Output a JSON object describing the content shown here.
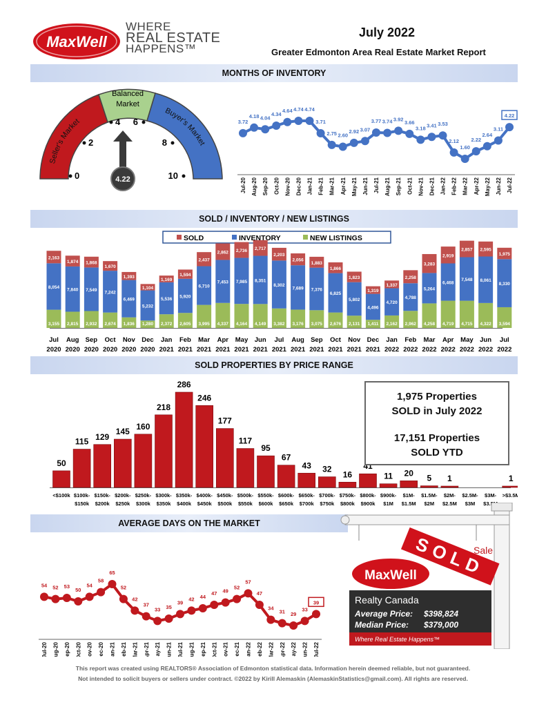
{
  "header": {
    "logo_text": "MaxWell",
    "tagline_lines": [
      "WHERE",
      "REAL ESTATE",
      "HAPPENS™"
    ],
    "report_month": "July 2022",
    "report_title": "Greater Edmonton Area Real Estate Market Report"
  },
  "sections": {
    "inventory": "MONTHS OF INVENTORY",
    "sold_inv": "SOLD / INVENTORY / NEW LISTINGS",
    "price_range": "SOLD PROPERTIES BY PRICE RANGE",
    "dom": "AVERAGE DAYS ON THE MARKET"
  },
  "gauge": {
    "sellers_label": "Seller's Market",
    "balanced_label": "Balanced Market",
    "buyers_label": "Buyer's Market",
    "ticks": [
      "0",
      "2",
      "4",
      "6",
      "8",
      "10"
    ],
    "value": 4.22,
    "value_label": "4.22",
    "colors": {
      "sellers": "#c0191e",
      "balanced": "#a9d18e",
      "buyers": "#4472c4",
      "needle": "#3a3a3a"
    }
  },
  "summary": {
    "sold_count": "1,975 Properties",
    "sold_caption": "SOLD in July 2022",
    "ytd_count": "17,151 Properties",
    "ytd_caption": "SOLD YTD"
  },
  "sign": {
    "sold_text": "SOLD",
    "sale_text": "Sale",
    "brand": "MaxWell",
    "company": "Realty Canada",
    "avg_label": "Average Price:",
    "avg_value": "$398,824",
    "median_label": "Median Price:",
    "median_value": "$379,000",
    "slogan": "Where Real Estate Happens™"
  },
  "footer": {
    "line1": "This report was created using REALTORS® Association of Edmonton statistical data. Information herein deemed reliable, but not guaranteed.",
    "line2": "Not intended to solicit buyers or sellers under contract. ©2022 by Kirill Alemaskin (AlemaskinStatistics@gmail.com). All rights are reserved."
  },
  "chart_data": [
    {
      "type": "line",
      "name": "months_of_inventory",
      "x": [
        "Jul-20",
        "Aug-20",
        "Sep-20",
        "Oct-20",
        "Nov-20",
        "Dec-20",
        "Jan-21",
        "Feb-21",
        "Mar-21",
        "Apr-21",
        "May-21",
        "Jun-21",
        "Jul-21",
        "Aug-21",
        "Sep-21",
        "Oct-21",
        "Nov-21",
        "Dec-21",
        "Jan-22",
        "Feb-22",
        "Mar-22",
        "Apr-22",
        "May-22",
        "Jun-22",
        "Jul-22"
      ],
      "values": [
        3.72,
        4.18,
        4.04,
        4.34,
        4.64,
        4.74,
        4.74,
        3.71,
        2.75,
        2.6,
        2.92,
        3.07,
        3.77,
        3.74,
        3.92,
        3.66,
        3.18,
        3.41,
        3.53,
        2.12,
        1.6,
        2.22,
        2.64,
        3.11,
        4.22
      ],
      "labels": [
        "3.72",
        "4.18",
        "4.04",
        "4.34",
        "4.64",
        "4.74",
        "4.74",
        "3.71",
        "2.75",
        "2.60",
        "2.92",
        "3.07",
        "3.77",
        "3.74",
        "3.92",
        "3.66",
        "3.18",
        "3.41",
        "3.53",
        "2.12",
        "1.60",
        "2.22",
        "2.64",
        "3.11",
        "4.22"
      ],
      "color": "#4472c4",
      "highlight_last": true
    },
    {
      "type": "bar",
      "name": "sold_inventory_new_listings",
      "stacked": true,
      "legend": [
        "SOLD",
        "INVENTORY",
        "NEW LISTINGS"
      ],
      "categories": [
        [
          "Jul",
          "2020"
        ],
        [
          "Aug",
          "2020"
        ],
        [
          "Sep",
          "2020"
        ],
        [
          "Oct",
          "2020"
        ],
        [
          "Nov",
          "2020"
        ],
        [
          "Dec",
          "2020"
        ],
        [
          "Jan",
          "2021"
        ],
        [
          "Feb",
          "2021"
        ],
        [
          "Mar",
          "2021"
        ],
        [
          "Apr",
          "2021"
        ],
        [
          "May",
          "2021"
        ],
        [
          "Jun",
          "2021"
        ],
        [
          "Jul",
          "2021"
        ],
        [
          "Aug",
          "2021"
        ],
        [
          "Sep",
          "2021"
        ],
        [
          "Oct",
          "2021"
        ],
        [
          "Nov",
          "2021"
        ],
        [
          "Dec",
          "2021"
        ],
        [
          "Jan",
          "2022"
        ],
        [
          "Feb",
          "2022"
        ],
        [
          "Mar",
          "2022"
        ],
        [
          "Apr",
          "2022"
        ],
        [
          "May",
          "2022"
        ],
        [
          "Jun",
          "2022"
        ],
        [
          "Jul",
          "2022"
        ]
      ],
      "series": [
        {
          "name": "NEW LISTINGS",
          "color": "#9bbb59",
          "values": [
            3155,
            2815,
            2932,
            2674,
            1836,
            1280,
            2372,
            2605,
            3995,
            4337,
            4164,
            4149,
            3382,
            3176,
            3075,
            2676,
            2131,
            1411,
            2162,
            2962,
            4258,
            4719,
            4715,
            4322,
            3594
          ],
          "labels": [
            "3,155",
            "2,815",
            "2,932",
            "2,674",
            "1,836",
            "1,280",
            "2,372",
            "2,605",
            "3,995",
            "4,337",
            "4,164",
            "4,149",
            "3,382",
            "3,176",
            "3,075",
            "2,676",
            "2,131",
            "1,411",
            "2,162",
            "2,962",
            "4,258",
            "4,719",
            "4,715",
            "4,322",
            "3,594"
          ]
        },
        {
          "name": "INVENTORY",
          "color": "#4472c4",
          "values": [
            8054,
            7840,
            7549,
            7242,
            6469,
            5232,
            5536,
            5920,
            6710,
            7453,
            7985,
            8351,
            8302,
            7689,
            7376,
            6825,
            5802,
            4496,
            4720,
            4788,
            5264,
            6468,
            7548,
            8061,
            8330
          ],
          "labels": [
            "8,054",
            "7,840",
            "7,549",
            "7,242",
            "6,469",
            "5,232",
            "5,536",
            "5,920",
            "6,710",
            "7,453",
            "7,985",
            "8,351",
            "8,302",
            "7,689",
            "7,376",
            "6,825",
            "5,802",
            "4,496",
            "4,720",
            "4,788",
            "5,264",
            "6,468",
            "7,548",
            "8,061",
            "8,330"
          ]
        },
        {
          "name": "SOLD",
          "color": "#c0504d",
          "values": [
            2163,
            1874,
            1868,
            1670,
            1393,
            1104,
            1169,
            1594,
            2437,
            2862,
            2736,
            2717,
            2203,
            2056,
            1883,
            1866,
            1823,
            1319,
            1337,
            2258,
            3283,
            2919,
            2857,
            2595,
            1975
          ],
          "labels": [
            "2,163",
            "1,874",
            "1,868",
            "1,670",
            "1,393",
            "1,104",
            "1,169",
            "1,594",
            "2,437",
            "2,862",
            "2,736",
            "2,717",
            "2,203",
            "2,056",
            "1,883",
            "1,866",
            "1,823",
            "1,319",
            "1,337",
            "2,258",
            "3,283",
            "2,919",
            "2,857",
            "2,595",
            "1,975"
          ]
        }
      ]
    },
    {
      "type": "bar",
      "name": "sold_by_price_range",
      "categories": [
        [
          "<$100k",
          ""
        ],
        [
          "$100k-",
          "$150k"
        ],
        [
          "$150k-",
          "$200k"
        ],
        [
          "$200k-",
          "$250k"
        ],
        [
          "$250k-",
          "$300k"
        ],
        [
          "$300k-",
          "$350k"
        ],
        [
          "$350k-",
          "$400k"
        ],
        [
          "$400k-",
          "$450k"
        ],
        [
          "$450k-",
          "$500k"
        ],
        [
          "$500k-",
          "$550k"
        ],
        [
          "$550k-",
          "$600k"
        ],
        [
          "$600k-",
          "$650k"
        ],
        [
          "$650k-",
          "$700k"
        ],
        [
          "$700k-",
          "$750k"
        ],
        [
          "$750k-",
          "$800k"
        ],
        [
          "$800k-",
          "$900k"
        ],
        [
          "$900k-",
          "$1M"
        ],
        [
          "$1M-",
          "$1.5M"
        ],
        [
          "$1.5M-",
          "$2M"
        ],
        [
          "$2M-",
          "$2.5M"
        ],
        [
          "$2.5M-",
          "$3M"
        ],
        [
          "$3M-",
          "$3.5M"
        ],
        [
          ">$3.5M",
          ""
        ]
      ],
      "values": [
        50,
        115,
        129,
        145,
        160,
        218,
        286,
        246,
        177,
        117,
        95,
        67,
        43,
        32,
        16,
        41,
        11,
        20,
        5,
        1,
        0,
        0,
        1
      ],
      "labels": [
        "50",
        "115",
        "129",
        "145",
        "160",
        "218",
        "286",
        "246",
        "177",
        "117",
        "95",
        "67",
        "43",
        "32",
        "16",
        "41",
        "11",
        "20",
        "5",
        "1",
        "",
        "",
        "1"
      ],
      "color": "#c0191e"
    },
    {
      "type": "line",
      "name": "average_days_on_market",
      "x": [
        "Jul-20",
        "Aug-20",
        "Sep-20",
        "Oct-20",
        "Nov-20",
        "Dec-20",
        "Jan-21",
        "Feb-21",
        "Mar-21",
        "Apr-21",
        "May-21",
        "Jun-21",
        "Jul-21",
        "Aug-21",
        "Sep-21",
        "Oct-21",
        "Nov-21",
        "Dec-21",
        "Jan-22",
        "Feb-22",
        "Mar-22",
        "Apr-22",
        "May-22",
        "Jun-22",
        "Jul-22"
      ],
      "values": [
        54,
        52,
        53,
        50,
        54,
        58,
        65,
        52,
        42,
        37,
        33,
        35,
        39,
        42,
        44,
        47,
        49,
        52,
        57,
        47,
        34,
        31,
        29,
        33,
        39
      ],
      "labels": [
        "54",
        "52",
        "53",
        "50",
        "54",
        "58",
        "65",
        "52",
        "42",
        "37",
        "33",
        "35",
        "39",
        "42",
        "44",
        "47",
        "49",
        "52",
        "57",
        "47",
        "34",
        "31",
        "29",
        "33",
        "39"
      ],
      "color": "#c0191e",
      "highlight_last": true
    }
  ]
}
